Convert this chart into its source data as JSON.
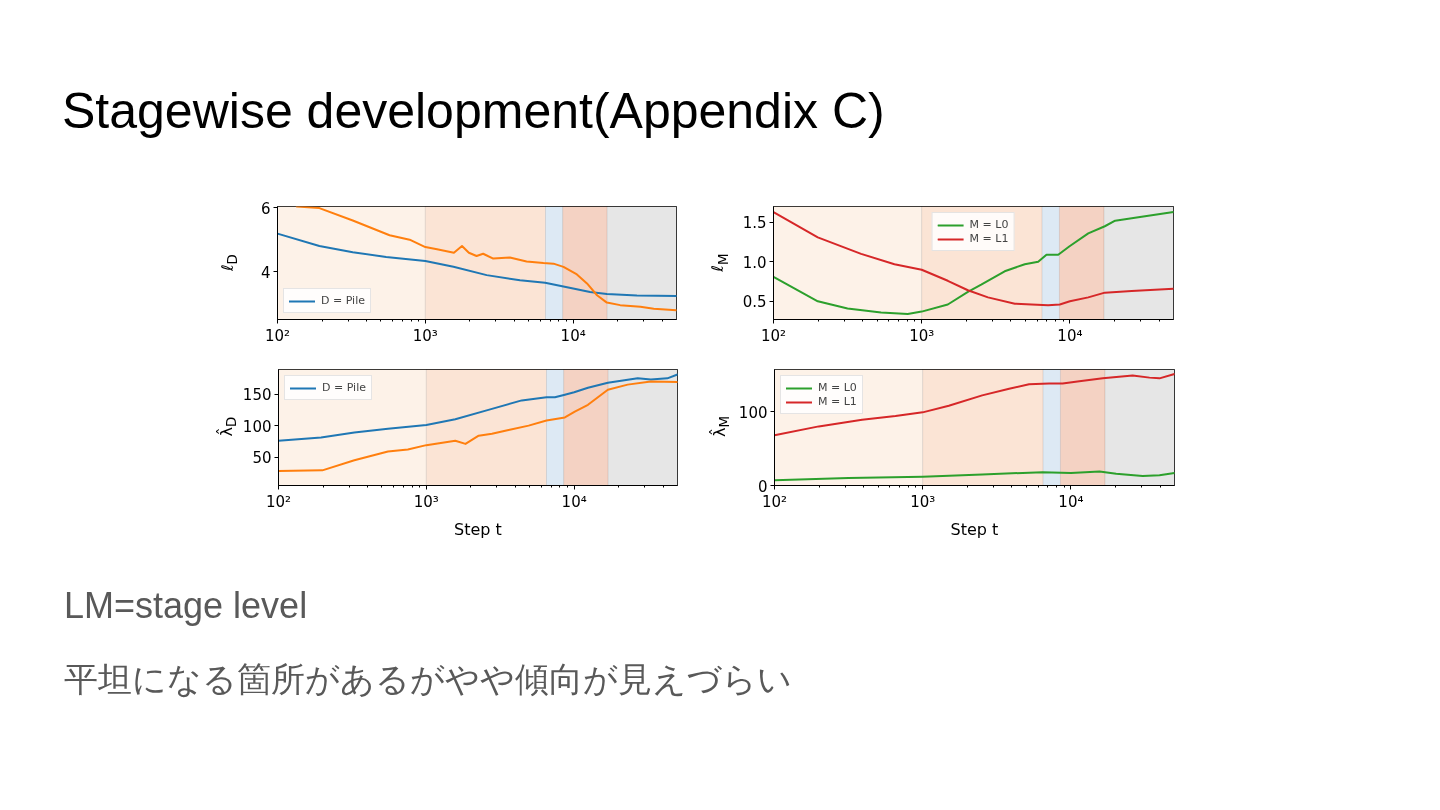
{
  "chart_data": [
    {
      "type": "line",
      "title": "Stagewise development(Appendix C)",
      "annotations": [
        "LM=stage level",
        "平坦になる箇所があるがやや傾向が見えづらい"
      ],
      "ylabel": "ℓ$_{D}$",
      "log": "x",
      "xlim": [
        100,
        50000
      ],
      "xticks": [
        {
          "value": 100,
          "label": "10²"
        },
        {
          "value": 1000,
          "label": "10³"
        },
        {
          "value": 10000,
          "label": "10⁴"
        }
      ],
      "ylim": [
        2.5,
        6.04
      ],
      "yticks": [
        4,
        6
      ],
      "legend": "bottom left",
      "bands": [
        {
          "axis": "x",
          "from": 100,
          "to": 1000,
          "color": "#fdf2e8"
        },
        {
          "axis": "x",
          "from": 1000,
          "to": 6500,
          "color": "#fbe4d5"
        },
        {
          "axis": "x",
          "from": 6500,
          "to": 8500,
          "color": "#dde9f4"
        },
        {
          "axis": "x",
          "from": 8500,
          "to": 17000,
          "color": "#f4d2c3"
        },
        {
          "axis": "x",
          "from": 17000,
          "to": 50000,
          "color": "#e6e6e6"
        }
      ],
      "series": [
        {
          "name": "D = Pile",
          "color": "#1f77b4",
          "x": [
            100,
            192,
            323,
            543,
            1000,
            1550,
            2600,
            4370,
            6460,
            10000,
            13000,
            16900,
            27000,
            50000
          ],
          "values": [
            5.19,
            4.8,
            4.61,
            4.46,
            4.33,
            4.15,
            3.89,
            3.73,
            3.65,
            3.47,
            3.36,
            3.3,
            3.25,
            3.24
          ]
        },
        {
          "color": "#ff7f0e",
          "x": [
            135,
            192,
            323,
            573,
            783,
            1000,
            1200,
            1560,
            1770,
            1970,
            2220,
            2460,
            2880,
            3730,
            4840,
            6290,
            7360,
            8600,
            10600,
            12400,
            14500,
            16900,
            20800,
            28500,
            35100,
            50000
          ],
          "values": [
            6.04,
            5.99,
            5.6,
            5.14,
            5.0,
            4.77,
            4.7,
            4.59,
            4.8,
            4.59,
            4.49,
            4.56,
            4.41,
            4.44,
            4.32,
            4.27,
            4.25,
            4.15,
            3.91,
            3.63,
            3.26,
            3.03,
            2.95,
            2.9,
            2.84,
            2.79
          ]
        }
      ]
    },
    {
      "type": "line",
      "ylabel": "ℓ$_{M}$",
      "log": "x",
      "xlim": [
        100,
        50000
      ],
      "xticks": [
        {
          "value": 100,
          "label": "10²"
        },
        {
          "value": 1000,
          "label": "10³"
        },
        {
          "value": 10000,
          "label": "10⁴"
        }
      ],
      "ylim": [
        0.27,
        1.7
      ],
      "yticks": [
        0.5,
        {
          "value": 1.0,
          "label": "1.0"
        },
        1.5
      ],
      "legend": "top",
      "bands": [
        {
          "axis": "x",
          "from": 100,
          "to": 1000,
          "color": "#fdf2e8"
        },
        {
          "axis": "x",
          "from": 1000,
          "to": 6500,
          "color": "#fbe4d5"
        },
        {
          "axis": "x",
          "from": 6500,
          "to": 8500,
          "color": "#dde9f4"
        },
        {
          "axis": "x",
          "from": 8500,
          "to": 17000,
          "color": "#f4d2c3"
        },
        {
          "axis": "x",
          "from": 17000,
          "to": 50000,
          "color": "#e6e6e6"
        }
      ],
      "series": [
        {
          "name": "M = L0",
          "color": "#2ca02c",
          "x": [
            100,
            199,
            316,
            532,
            805,
            1000,
            1500,
            2050,
            2520,
            3630,
            4960,
            6110,
            6950,
            8340,
            10000,
            13300,
            17200,
            20200,
            30500,
            50000
          ],
          "values": [
            0.81,
            0.5,
            0.41,
            0.36,
            0.34,
            0.37,
            0.46,
            0.62,
            0.71,
            0.88,
            0.97,
            1.0,
            1.09,
            1.09,
            1.2,
            1.36,
            1.45,
            1.52,
            1.57,
            1.63
          ]
        },
        {
          "name": "M = L1",
          "color": "#d62728",
          "x": [
            100,
            199,
            390,
            655,
            1000,
            1500,
            2050,
            2800,
            4250,
            5510,
            7130,
            8550,
            10000,
            13300,
            17200,
            26100,
            50000
          ],
          "values": [
            1.63,
            1.31,
            1.1,
            0.97,
            0.9,
            0.76,
            0.64,
            0.55,
            0.47,
            0.46,
            0.45,
            0.46,
            0.5,
            0.55,
            0.61,
            0.63,
            0.66
          ]
        }
      ]
    },
    {
      "type": "line",
      "xlabel": "Step t",
      "ylabel": "λ̂$_{D}$",
      "log": "x",
      "xlim": [
        100,
        50000
      ],
      "xticks": [
        {
          "value": 100,
          "label": "10²"
        },
        {
          "value": 1000,
          "label": "10³"
        },
        {
          "value": 10000,
          "label": "10⁴"
        }
      ],
      "ylim": [
        5,
        189
      ],
      "yticks": [
        50,
        100,
        150
      ],
      "legend": "top left",
      "bands": [
        {
          "axis": "x",
          "from": 100,
          "to": 1000,
          "color": "#fdf2e8"
        },
        {
          "axis": "x",
          "from": 1000,
          "to": 6500,
          "color": "#fbe4d5"
        },
        {
          "axis": "x",
          "from": 6500,
          "to": 8500,
          "color": "#dde9f4"
        },
        {
          "axis": "x",
          "from": 8500,
          "to": 17000,
          "color": "#f4d2c3"
        },
        {
          "axis": "x",
          "from": 17000,
          "to": 50000,
          "color": "#e6e6e6"
        }
      ],
      "series": [
        {
          "name": "D = Pile",
          "color": "#1f77b4",
          "x": [
            100,
            194,
            326,
            550,
            1000,
            1570,
            2630,
            4420,
            6500,
            7410,
            8650,
            10000,
            12400,
            16900,
            26900,
            33000,
            42700,
            50000
          ],
          "values": [
            76,
            81,
            89,
            95,
            101,
            110,
            125,
            140,
            145,
            145,
            149,
            153,
            160,
            168,
            175,
            173,
            175,
            181
          ]
        },
        {
          "color": "#ff7f0e",
          "x": [
            100,
            198,
            326,
            550,
            750,
            1000,
            1570,
            1840,
            2260,
            2780,
            3600,
            4920,
            6500,
            8650,
            10100,
            12400,
            16900,
            23000,
            33000,
            50000
          ],
          "values": [
            28,
            29,
            45,
            59,
            62,
            69,
            76,
            71,
            84,
            87,
            93,
            100,
            108,
            113,
            122,
            133,
            157,
            165,
            170,
            169
          ]
        }
      ]
    },
    {
      "type": "line",
      "xlabel": "Step t",
      "ylabel": "λ̂$_{M}$",
      "log": "x",
      "xlim": [
        100,
        50000
      ],
      "xticks": [
        {
          "value": 100,
          "label": "10²"
        },
        {
          "value": 1000,
          "label": "10³"
        },
        {
          "value": 10000,
          "label": "10⁴"
        }
      ],
      "ylim": [
        0,
        157
      ],
      "yticks": [
        0,
        100
      ],
      "legend": "top left",
      "bands": [
        {
          "axis": "x",
          "from": 100,
          "to": 1000,
          "color": "#fdf2e8"
        },
        {
          "axis": "x",
          "from": 1000,
          "to": 6500,
          "color": "#fbe4d5"
        },
        {
          "axis": "x",
          "from": 6500,
          "to": 8500,
          "color": "#dde9f4"
        },
        {
          "axis": "x",
          "from": 8500,
          "to": 17000,
          "color": "#f4d2c3"
        },
        {
          "axis": "x",
          "from": 17000,
          "to": 50000,
          "color": "#e6e6e6"
        }
      ],
      "series": [
        {
          "name": "M = L0",
          "color": "#2ca02c",
          "x": [
            100,
            316,
            1000,
            2520,
            6430,
            10000,
            15600,
            20200,
            30500,
            39600,
            50000
          ],
          "values": [
            7,
            10,
            12,
            15,
            18,
            17,
            19,
            16,
            13,
            14,
            17
          ]
        },
        {
          "name": "M = L1",
          "color": "#d62728",
          "x": [
            100,
            199,
            390,
            655,
            1000,
            1500,
            2520,
            3830,
            5220,
            7130,
            8790,
            11400,
            16400,
            26100,
            33900,
            39600,
            50000
          ],
          "values": [
            68,
            80,
            89,
            94,
            99,
            108,
            122,
            131,
            137,
            138,
            138,
            141,
            145,
            149,
            146,
            145,
            151
          ]
        }
      ]
    }
  ]
}
